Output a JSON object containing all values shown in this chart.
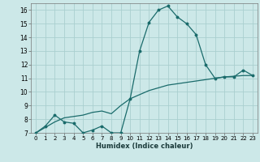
{
  "xlabel": "Humidex (Indice chaleur)",
  "background_color": "#cce8e8",
  "grid_color": "#aacfcf",
  "line_color": "#1a6b6b",
  "xlim": [
    -0.5,
    23.5
  ],
  "ylim": [
    7,
    16.5
  ],
  "xticks": [
    0,
    1,
    2,
    3,
    4,
    5,
    6,
    7,
    8,
    9,
    10,
    11,
    12,
    13,
    14,
    15,
    16,
    17,
    18,
    19,
    20,
    21,
    22,
    23
  ],
  "yticks": [
    7,
    8,
    9,
    10,
    11,
    12,
    13,
    14,
    15,
    16
  ],
  "curve1_x": [
    0,
    1,
    2,
    3,
    4,
    5,
    6,
    7,
    8,
    9,
    10,
    11,
    12,
    13,
    14,
    15,
    16,
    17,
    18,
    19,
    20,
    21,
    22,
    23
  ],
  "curve1_y": [
    7.0,
    7.5,
    8.3,
    7.8,
    7.7,
    7.0,
    7.2,
    7.5,
    7.0,
    7.0,
    9.5,
    13.0,
    15.1,
    16.0,
    16.3,
    15.5,
    15.0,
    14.2,
    12.0,
    11.0,
    11.1,
    11.1,
    11.6,
    11.2
  ],
  "curve2_x": [
    0,
    1,
    2,
    3,
    4,
    5,
    6,
    7,
    8,
    9,
    10,
    11,
    12,
    13,
    14,
    15,
    16,
    17,
    18,
    19,
    20,
    21,
    22,
    23
  ],
  "curve2_y": [
    7.0,
    7.4,
    7.8,
    8.1,
    8.2,
    8.3,
    8.5,
    8.6,
    8.4,
    9.0,
    9.5,
    9.8,
    10.1,
    10.3,
    10.5,
    10.6,
    10.7,
    10.8,
    10.9,
    11.0,
    11.1,
    11.15,
    11.2,
    11.2
  ],
  "tick_fontsize": 5.0,
  "xlabel_fontsize": 6.0
}
